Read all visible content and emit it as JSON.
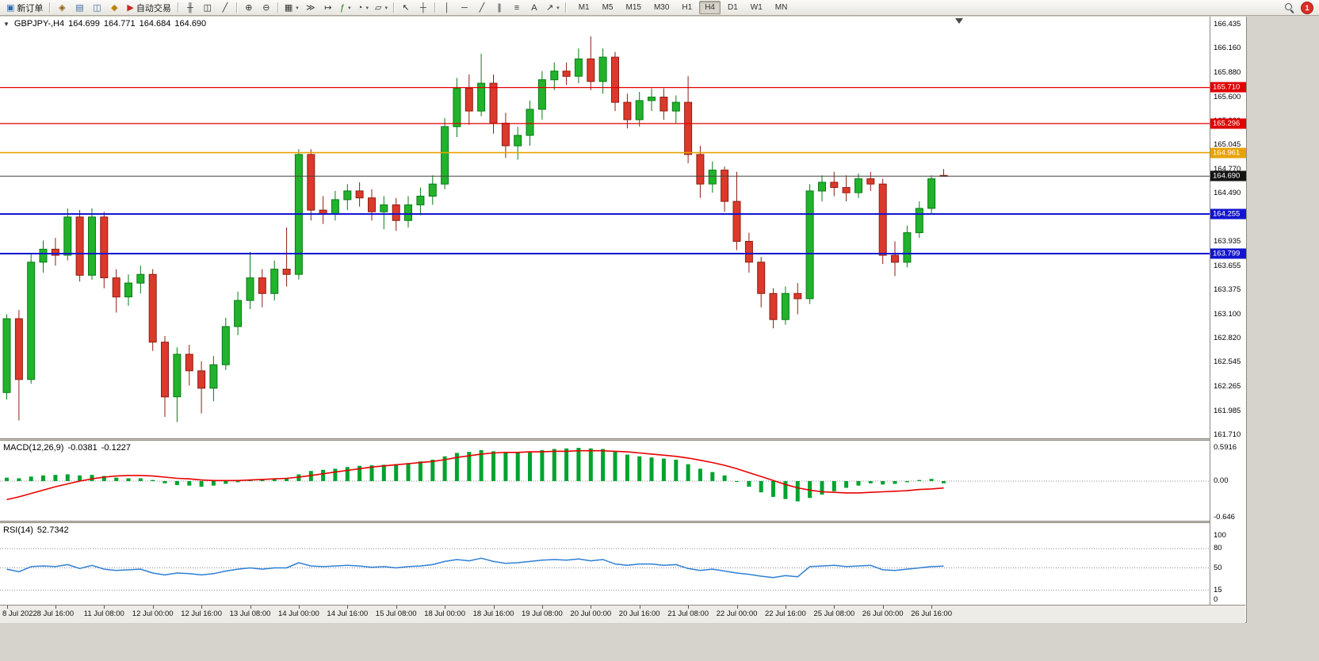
{
  "toolbar": {
    "caret_glyph": "▾",
    "notification_count": "1",
    "active_timeframe": "H4",
    "timeframes": [
      "M1",
      "M5",
      "M15",
      "M30",
      "H1",
      "H4",
      "D1",
      "W1",
      "MN"
    ],
    "items": [
      {
        "type": "button",
        "name": "new-order-button",
        "label": "新订单",
        "icon": "▣",
        "icon_color": "#2B6CB0"
      },
      {
        "type": "sep"
      },
      {
        "type": "icon",
        "name": "expert-advisors-icon",
        "glyph": "◈",
        "color": "#8A5A00"
      },
      {
        "type": "icon",
        "name": "market-watch-icon",
        "glyph": "▤",
        "color": "#3B6EA5"
      },
      {
        "type": "icon",
        "name": "data-window-icon",
        "glyph": "◫",
        "color": "#3B6EA5"
      },
      {
        "type": "icon",
        "name": "navigator-icon",
        "glyph": "◆",
        "color": "#B8860B"
      },
      {
        "type": "button",
        "name": "autotrading-button",
        "label": "自动交易",
        "icon": "▶",
        "icon_color": "#C62828"
      },
      {
        "type": "sep"
      },
      {
        "type": "icon",
        "name": "bar-chart-icon",
        "glyph": "╫",
        "color": "#333333"
      },
      {
        "type": "icon",
        "name": "candlestick-chart-icon",
        "glyph": "◫",
        "color": "#333333"
      },
      {
        "type": "icon",
        "name": "line-chart-icon",
        "glyph": "╱",
        "color": "#333333"
      },
      {
        "type": "sep"
      },
      {
        "type": "icon",
        "name": "zoom-in-icon",
        "glyph": "⊕",
        "color": "#333333"
      },
      {
        "type": "icon",
        "name": "zoom-out-icon",
        "glyph": "⊖",
        "color": "#333333"
      },
      {
        "type": "sep"
      },
      {
        "type": "icon",
        "name": "tile-windows-icon",
        "glyph": "▦",
        "color": "#333333",
        "caret": true
      },
      {
        "type": "icon",
        "name": "auto-scroll-icon",
        "glyph": "≫",
        "color": "#333333"
      },
      {
        "type": "icon",
        "name": "chart-shift-icon",
        "glyph": "↦",
        "color": "#333333"
      },
      {
        "type": "icon",
        "name": "indicators-icon",
        "glyph": "ƒ",
        "color": "#1A7A1A",
        "caret": true
      },
      {
        "type": "icon",
        "name": "periods-icon",
        "glyph": "◔",
        "color": "#333333",
        "caret": true
      },
      {
        "type": "icon",
        "name": "templates-icon",
        "glyph": "▱",
        "color": "#333333",
        "caret": true
      },
      {
        "type": "sep"
      },
      {
        "type": "icon",
        "name": "cursor-icon",
        "glyph": "↖",
        "color": "#333333"
      },
      {
        "type": "icon",
        "name": "crosshair-icon",
        "glyph": "┼",
        "color": "#333333"
      },
      {
        "type": "sep"
      },
      {
        "type": "icon",
        "name": "vertical-line-icon",
        "glyph": "│",
        "color": "#333333"
      },
      {
        "type": "icon",
        "name": "horizontal-line-icon",
        "glyph": "─",
        "color": "#333333"
      },
      {
        "type": "icon",
        "name": "trendline-icon",
        "glyph": "╱",
        "color": "#333333"
      },
      {
        "type": "icon",
        "name": "equidistant-channel-icon",
        "glyph": "∥",
        "color": "#333333"
      },
      {
        "type": "icon",
        "name": "fibonacci-icon",
        "glyph": "≡",
        "color": "#333333"
      },
      {
        "type": "icon",
        "name": "text-icon",
        "glyph": "A",
        "color": "#333333"
      },
      {
        "type": "icon",
        "name": "arrows-icon",
        "glyph": "↗",
        "color": "#333333",
        "caret": true
      },
      {
        "type": "sep"
      }
    ]
  },
  "chart": {
    "header": {
      "expand_arrow": "▼",
      "symbol": "GBPJPY-,H4",
      "open": "164.699",
      "high": "164.771",
      "low": "164.684",
      "close": "164.690"
    },
    "price_axis": {
      "labels": [
        "166.435",
        "166.160",
        "165.880",
        "165.600",
        "165.320",
        "165.045",
        "164.770",
        "164.490",
        "164.215",
        "163.935",
        "163.655",
        "163.375",
        "163.100",
        "162.820",
        "162.545",
        "162.265",
        "161.985",
        "161.710"
      ]
    },
    "hlines": [
      {
        "price": 165.71,
        "label": "165.710",
        "color": "#E00000",
        "width": 1.3
      },
      {
        "price": 165.296,
        "label": "165.296",
        "color": "#E00000",
        "width": 1.3
      },
      {
        "price": 164.961,
        "label": "164.961",
        "color": "#E8A200",
        "width": 1.6
      },
      {
        "price": 164.255,
        "label": "164.255",
        "color": "#1414D2",
        "width": 2
      },
      {
        "price": 163.799,
        "label": "163.799",
        "color": "#1414D2",
        "width": 2
      }
    ],
    "bid_line": {
      "price": 164.69,
      "label": "164.690",
      "color": "#141414"
    },
    "candles": [
      [
        162.2,
        163.1,
        162.12,
        163.05
      ],
      [
        163.05,
        163.15,
        161.88,
        162.35
      ],
      [
        162.35,
        163.8,
        162.3,
        163.7
      ],
      [
        163.7,
        163.95,
        163.58,
        163.85
      ],
      [
        163.85,
        163.98,
        163.66,
        163.78
      ],
      [
        163.78,
        164.32,
        163.72,
        164.22
      ],
      [
        164.22,
        164.3,
        163.48,
        163.55
      ],
      [
        163.55,
        164.32,
        163.5,
        164.22
      ],
      [
        164.22,
        164.28,
        163.4,
        163.52
      ],
      [
        163.52,
        163.62,
        163.12,
        163.3
      ],
      [
        163.3,
        163.56,
        163.2,
        163.46
      ],
      [
        163.46,
        163.66,
        163.34,
        163.56
      ],
      [
        163.56,
        163.62,
        162.68,
        162.78
      ],
      [
        162.78,
        162.85,
        161.92,
        162.15
      ],
      [
        162.15,
        162.72,
        161.86,
        162.64
      ],
      [
        162.64,
        162.75,
        162.28,
        162.45
      ],
      [
        162.45,
        162.56,
        161.96,
        162.25
      ],
      [
        162.25,
        162.62,
        162.1,
        162.52
      ],
      [
        162.52,
        163.06,
        162.46,
        162.96
      ],
      [
        162.96,
        163.36,
        162.86,
        163.26
      ],
      [
        163.26,
        163.82,
        163.16,
        163.52
      ],
      [
        163.52,
        163.62,
        163.18,
        163.34
      ],
      [
        163.34,
        163.72,
        163.26,
        163.62
      ],
      [
        163.62,
        164.1,
        163.42,
        163.56
      ],
      [
        163.56,
        165.0,
        163.5,
        164.94
      ],
      [
        164.94,
        165.0,
        164.18,
        164.3
      ],
      [
        164.3,
        164.46,
        164.14,
        164.26
      ],
      [
        164.26,
        164.52,
        164.18,
        164.42
      ],
      [
        164.42,
        164.6,
        164.3,
        164.52
      ],
      [
        164.52,
        164.62,
        164.34,
        164.44
      ],
      [
        164.44,
        164.54,
        164.18,
        164.28
      ],
      [
        164.28,
        164.46,
        164.08,
        164.36
      ],
      [
        164.36,
        164.44,
        164.06,
        164.18
      ],
      [
        164.18,
        164.46,
        164.1,
        164.36
      ],
      [
        164.36,
        164.56,
        164.24,
        164.46
      ],
      [
        164.46,
        164.7,
        164.36,
        164.6
      ],
      [
        164.6,
        165.36,
        164.54,
        165.26
      ],
      [
        165.26,
        165.82,
        165.14,
        165.7
      ],
      [
        165.7,
        165.86,
        165.28,
        165.44
      ],
      [
        165.44,
        166.1,
        165.38,
        165.76
      ],
      [
        165.76,
        165.86,
        165.18,
        165.3
      ],
      [
        165.3,
        165.42,
        164.9,
        165.04
      ],
      [
        165.04,
        165.26,
        164.88,
        165.16
      ],
      [
        165.16,
        165.56,
        165.04,
        165.46
      ],
      [
        165.46,
        165.9,
        165.34,
        165.8
      ],
      [
        165.8,
        166.0,
        165.68,
        165.9
      ],
      [
        165.9,
        166.0,
        165.74,
        165.84
      ],
      [
        165.84,
        166.16,
        165.76,
        166.04
      ],
      [
        166.04,
        166.3,
        165.68,
        165.78
      ],
      [
        165.78,
        166.16,
        165.64,
        166.06
      ],
      [
        166.06,
        166.12,
        165.44,
        165.54
      ],
      [
        165.54,
        165.64,
        165.24,
        165.34
      ],
      [
        165.34,
        165.66,
        165.26,
        165.56
      ],
      [
        165.56,
        165.7,
        165.44,
        165.6
      ],
      [
        165.6,
        165.7,
        165.34,
        165.44
      ],
      [
        165.44,
        165.62,
        165.3,
        165.54
      ],
      [
        165.54,
        165.84,
        164.84,
        164.94
      ],
      [
        164.94,
        165.04,
        164.44,
        164.6
      ],
      [
        164.6,
        164.86,
        164.5,
        164.76
      ],
      [
        164.76,
        164.8,
        164.28,
        164.4
      ],
      [
        164.4,
        164.74,
        163.84,
        163.94
      ],
      [
        163.94,
        164.04,
        163.58,
        163.7
      ],
      [
        163.7,
        163.76,
        163.18,
        163.34
      ],
      [
        163.34,
        163.4,
        162.94,
        163.04
      ],
      [
        163.04,
        163.42,
        162.98,
        163.34
      ],
      [
        163.34,
        163.46,
        163.1,
        163.28
      ],
      [
        163.28,
        164.6,
        163.22,
        164.52
      ],
      [
        164.52,
        164.7,
        164.4,
        164.62
      ],
      [
        164.62,
        164.74,
        164.46,
        164.56
      ],
      [
        164.56,
        164.7,
        164.4,
        164.5
      ],
      [
        164.5,
        164.72,
        164.44,
        164.66
      ],
      [
        164.66,
        164.74,
        164.52,
        164.6
      ],
      [
        164.6,
        164.66,
        163.68,
        163.78
      ],
      [
        163.78,
        163.94,
        163.54,
        163.7
      ],
      [
        163.7,
        164.12,
        163.64,
        164.04
      ],
      [
        164.04,
        164.4,
        163.98,
        164.32
      ],
      [
        164.32,
        164.7,
        164.26,
        164.66
      ],
      [
        164.699,
        164.771,
        164.684,
        164.69
      ]
    ],
    "x_labels": [
      {
        "idx": 0,
        "text": "8 Jul 2022"
      },
      {
        "idx": 4,
        "text": "8 Jul 16:00"
      },
      {
        "idx": 8,
        "text": "11 Jul 08:00"
      },
      {
        "idx": 12,
        "text": "12 Jul 00:00"
      },
      {
        "idx": 16,
        "text": "12 Jul 16:00"
      },
      {
        "idx": 20,
        "text": "13 Jul 08:00"
      },
      {
        "idx": 24,
        "text": "14 Jul 00:00"
      },
      {
        "idx": 28,
        "text": "14 Jul 16:00"
      },
      {
        "idx": 32,
        "text": "15 Jul 08:00"
      },
      {
        "idx": 36,
        "text": "18 Jul 00:00"
      },
      {
        "idx": 40,
        "text": "18 Jul 16:00"
      },
      {
        "idx": 44,
        "text": "19 Jul 08:00"
      },
      {
        "idx": 48,
        "text": "20 Jul 00:00"
      },
      {
        "idx": 52,
        "text": "20 Jul 16:00"
      },
      {
        "idx": 56,
        "text": "21 Jul 08:00"
      },
      {
        "idx": 60,
        "text": "22 Jul 00:00"
      },
      {
        "idx": 64,
        "text": "22 Jul 16:00"
      },
      {
        "idx": 68,
        "text": "25 Jul 08:00"
      },
      {
        "idx": 72,
        "text": "26 Jul 00:00"
      },
      {
        "idx": 76,
        "text": "26 Jul 16:00"
      }
    ]
  },
  "macd": {
    "title": "MACD(12,26,9)",
    "main_value": "-0.0381",
    "signal_value": "-0.1227",
    "axis_labels": [
      "0.5916",
      "0.00",
      "-0.646"
    ],
    "colors": {
      "histogram": "#00A32E",
      "signal": "#E80000"
    },
    "histogram": [
      0.06,
      0.05,
      0.08,
      0.1,
      0.11,
      0.12,
      0.1,
      0.11,
      0.09,
      0.06,
      0.05,
      0.05,
      0.02,
      -0.04,
      -0.07,
      -0.08,
      -0.1,
      -0.08,
      -0.05,
      -0.02,
      0.02,
      0.03,
      0.04,
      0.05,
      0.12,
      0.18,
      0.2,
      0.22,
      0.25,
      0.27,
      0.28,
      0.29,
      0.3,
      0.32,
      0.35,
      0.38,
      0.44,
      0.5,
      0.52,
      0.55,
      0.53,
      0.5,
      0.5,
      0.52,
      0.55,
      0.57,
      0.58,
      0.59,
      0.58,
      0.57,
      0.52,
      0.47,
      0.44,
      0.42,
      0.4,
      0.38,
      0.3,
      0.22,
      0.16,
      0.1,
      0.0,
      -0.1,
      -0.2,
      -0.28,
      -0.32,
      -0.36,
      -0.3,
      -0.24,
      -0.18,
      -0.12,
      -0.08,
      -0.04,
      -0.06,
      -0.05,
      -0.02,
      0.02,
      0.04,
      -0.04
    ],
    "signal": [
      -0.33,
      -0.28,
      -0.22,
      -0.16,
      -0.1,
      -0.05,
      0.0,
      0.04,
      0.07,
      0.09,
      0.1,
      0.1,
      0.09,
      0.07,
      0.05,
      0.04,
      0.02,
      0.01,
      0.01,
      0.01,
      0.02,
      0.03,
      0.04,
      0.05,
      0.07,
      0.1,
      0.13,
      0.16,
      0.19,
      0.22,
      0.25,
      0.27,
      0.29,
      0.31,
      0.33,
      0.35,
      0.38,
      0.42,
      0.45,
      0.48,
      0.5,
      0.51,
      0.51,
      0.52,
      0.52,
      0.53,
      0.53,
      0.54,
      0.54,
      0.54,
      0.53,
      0.52,
      0.5,
      0.48,
      0.46,
      0.44,
      0.41,
      0.37,
      0.33,
      0.28,
      0.22,
      0.15,
      0.08,
      0.01,
      -0.06,
      -0.12,
      -0.16,
      -0.19,
      -0.2,
      -0.21,
      -0.21,
      -0.2,
      -0.19,
      -0.18,
      -0.17,
      -0.15,
      -0.14,
      -0.1227
    ]
  },
  "rsi": {
    "title": "RSI(14)",
    "value": "52.7342",
    "axis_labels": [
      "100",
      "80",
      "50",
      "15",
      "0"
    ],
    "levels": [
      80,
      50,
      15
    ],
    "color": "#2F7FD6",
    "values": [
      48,
      44,
      52,
      53,
      52,
      55,
      49,
      54,
      48,
      46,
      47,
      48,
      42,
      39,
      42,
      41,
      39,
      41,
      45,
      48,
      50,
      48,
      50,
      50,
      58,
      53,
      52,
      53,
      54,
      53,
      51,
      52,
      50,
      52,
      53,
      55,
      60,
      63,
      61,
      65,
      60,
      57,
      58,
      60,
      62,
      63,
      62,
      64,
      61,
      63,
      56,
      54,
      56,
      56,
      54,
      55,
      49,
      46,
      48,
      45,
      42,
      40,
      37,
      35,
      38,
      36,
      52,
      53,
      54,
      52,
      53,
      54,
      47,
      46,
      48,
      50,
      52,
      52.73
    ]
  }
}
